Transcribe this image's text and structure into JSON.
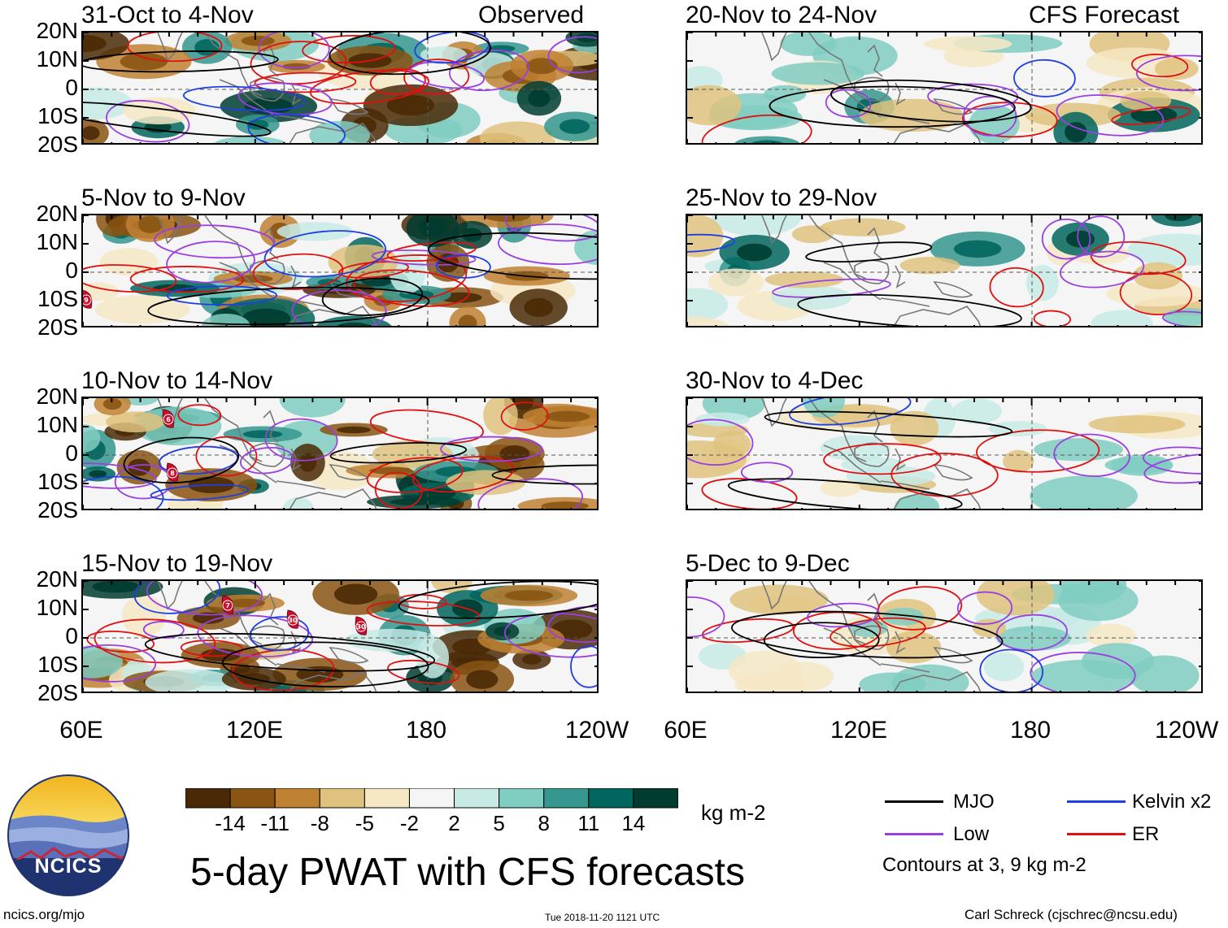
{
  "panels": {
    "observed": [
      {
        "title": "31-Oct to 4-Nov",
        "tag": "Observed"
      },
      {
        "title": "5-Nov to 9-Nov",
        "tag": ""
      },
      {
        "title": "10-Nov to 14-Nov",
        "tag": ""
      },
      {
        "title": "15-Nov to 19-Nov",
        "tag": ""
      }
    ],
    "forecast": [
      {
        "title": "20-Nov to 24-Nov",
        "tag": "CFS Forecast"
      },
      {
        "title": "25-Nov to 29-Nov",
        "tag": ""
      },
      {
        "title": "30-Nov to 4-Dec",
        "tag": ""
      },
      {
        "title": "5-Dec to 9-Dec",
        "tag": ""
      }
    ]
  },
  "lat_labels": [
    "20N",
    "10N",
    "0",
    "10S",
    "20S"
  ],
  "lon_labels": [
    "60E",
    "120E",
    "180",
    "120W"
  ],
  "storm_markers": {
    "p2": [
      "9"
    ],
    "p3": [
      "6",
      "8"
    ],
    "p4": [
      "7",
      "30",
      "30"
    ]
  },
  "colorbar": {
    "colors": [
      "#4a2a06",
      "#8a5413",
      "#bf8132",
      "#dfc27e",
      "#f6e8c4",
      "#f5f5f5",
      "#c7eae5",
      "#80cdc1",
      "#35978f",
      "#01665e",
      "#003c30"
    ],
    "ticks": [
      "-14",
      "-11",
      "-8",
      "-5",
      "-2",
      "2",
      "5",
      "8",
      "11",
      "14"
    ],
    "units": "kg m-2"
  },
  "legend": {
    "items": [
      {
        "label": "MJO",
        "color": "#000000"
      },
      {
        "label": "Kelvin x2",
        "color": "#1f3fe0"
      },
      {
        "label": "Low",
        "color": "#9a3fe0"
      },
      {
        "label": "ER",
        "color": "#e01010"
      }
    ],
    "note": "Contours at 3, 9 kg m-2"
  },
  "main_title": "5-day PWAT with CFS forecasts",
  "logo_text": "NCICS",
  "footer": {
    "left": "ncics.org/mjo",
    "center": "Tue 2018-11-20 1121 UTC",
    "right": "Carl Schreck (cjschrec@ncsu.edu)"
  }
}
